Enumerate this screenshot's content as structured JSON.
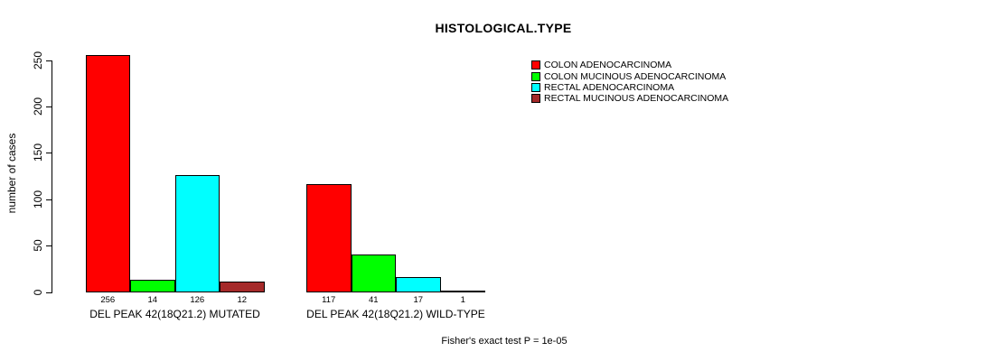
{
  "chart_data": {
    "type": "bar",
    "title": "HISTOLOGICAL.TYPE",
    "ylabel": "number of cases",
    "ylim": [
      0,
      250
    ],
    "yticks": [
      0,
      50,
      100,
      150,
      200,
      250
    ],
    "grid": false,
    "legend_position": "top-right",
    "background_color": "#ffffff",
    "bar_border_color": "#000000",
    "categories": [
      "DEL PEAK 42(18Q21.2) MUTATED",
      "DEL PEAK 42(18Q21.2) WILD-TYPE"
    ],
    "series": [
      {
        "name": "COLON ADENOCARCINOMA",
        "color": "#ff0000",
        "values": [
          256,
          117
        ]
      },
      {
        "name": "COLON MUCINOUS ADENOCARCINOMA",
        "color": "#00ff00",
        "values": [
          14,
          41
        ]
      },
      {
        "name": "RECTAL ADENOCARCINOMA",
        "color": "#00ffff",
        "values": [
          126,
          17
        ]
      },
      {
        "name": "RECTAL MUCINOUS ADENOCARCINOMA",
        "color": "#a52a2a",
        "values": [
          12,
          1
        ]
      }
    ],
    "value_labels": [
      [
        256,
        14,
        126,
        12
      ],
      [
        117,
        41,
        17,
        1
      ]
    ],
    "annotation": "Fisher's exact test P = 1e-05"
  }
}
